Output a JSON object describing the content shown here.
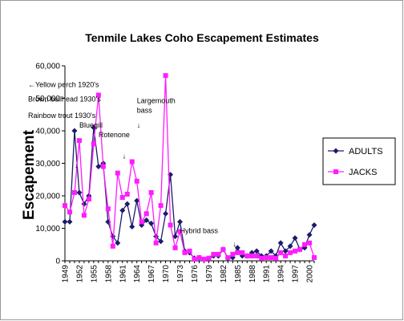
{
  "chart_data": {
    "type": "line",
    "title": "Tenmile Lakes Coho Escapement Estimates",
    "ylabel": "Escapement",
    "xlabel": "",
    "ylim": [
      0,
      60000
    ],
    "yticks": [
      "0",
      "10,000",
      "20,000",
      "30,000",
      "40,000",
      "50,000",
      "60,000"
    ],
    "xlim": [
      1949,
      2001
    ],
    "xticks": [
      "1949",
      "1952",
      "1955",
      "1958",
      "1961",
      "1964",
      "1967",
      "1970",
      "1973",
      "1976",
      "1979",
      "1982",
      "1985",
      "1988",
      "1991",
      "1994",
      "1997",
      "2000"
    ],
    "grid": false,
    "legend": "right",
    "series": [
      {
        "name": "ADULTS",
        "color": "#1c1c6b",
        "marker": "diamond",
        "x": [
          1949,
          1950,
          1951,
          1952,
          1953,
          1954,
          1955,
          1956,
          1957,
          1958,
          1959,
          1960,
          1961,
          1962,
          1963,
          1964,
          1965,
          1966,
          1967,
          1968,
          1969,
          1970,
          1971,
          1972,
          1973,
          1974,
          1975,
          1976,
          1977,
          1978,
          1979,
          1980,
          1981,
          1982,
          1983,
          1984,
          1985,
          1986,
          1987,
          1988,
          1989,
          1990,
          1991,
          1992,
          1993,
          1994,
          1995,
          1996,
          1997,
          1998,
          1999,
          2000,
          2001
        ],
        "values": [
          12000,
          12000,
          40000,
          21000,
          17500,
          20000,
          41000,
          29000,
          30000,
          12000,
          7500,
          5500,
          15500,
          17500,
          10500,
          18500,
          11000,
          12500,
          11500,
          7500,
          6000,
          14500,
          26500,
          7500,
          12000,
          3000,
          2500,
          800,
          1000,
          500,
          700,
          1500,
          1500,
          3500,
          800,
          1000,
          4000,
          1500,
          1500,
          2500,
          3000,
          1500,
          1500,
          3000,
          1500,
          5500,
          3000,
          4500,
          7000,
          3500,
          4000,
          8000,
          11000
        ]
      },
      {
        "name": "JACKS",
        "color": "#ff1cff",
        "marker": "square",
        "x": [
          1949,
          1950,
          1951,
          1952,
          1953,
          1954,
          1955,
          1956,
          1957,
          1958,
          1959,
          1960,
          1961,
          1962,
          1963,
          1964,
          1965,
          1966,
          1967,
          1968,
          1969,
          1970,
          1971,
          1972,
          1973,
          1974,
          1975,
          1976,
          1977,
          1978,
          1979,
          1980,
          1981,
          1982,
          1983,
          1984,
          1985,
          1986,
          1987,
          1988,
          1989,
          1990,
          1991,
          1992,
          1993,
          1994,
          1995,
          1996,
          1997,
          1998,
          1999,
          2000,
          2001
        ],
        "values": [
          17000,
          15000,
          21000,
          37000,
          14000,
          19000,
          36000,
          51000,
          29000,
          16000,
          4500,
          27000,
          19500,
          20500,
          30500,
          24500,
          12000,
          14500,
          21000,
          5500,
          17000,
          57000,
          11000,
          4000,
          9000,
          2500,
          3000,
          500,
          1000,
          500,
          800,
          2000,
          2000,
          3500,
          1000,
          2000,
          2500,
          2500,
          1500,
          1500,
          1500,
          800,
          1000,
          1000,
          800,
          2500,
          1500,
          2500,
          3000,
          3500,
          5000,
          5500,
          1000
        ]
      }
    ],
    "annotations": [
      {
        "text": "←Yellow perch 1920's",
        "x": 1949,
        "y": 53500
      },
      {
        "text": "Brown bullhead 1930's",
        "x": 1949,
        "y": 49000
      },
      {
        "text": "Rainbow  trout 1930's",
        "x": 1949,
        "y": 44000
      },
      {
        "text": "Bluegill",
        "x": 1952,
        "y": 41000
      },
      {
        "text": "↓",
        "x": 1951,
        "y": 28500
      },
      {
        "text": "Rotenone",
        "x": 1956,
        "y": 38000
      },
      {
        "text": "↓",
        "x": 1961,
        "y": 31500
      },
      {
        "text": "Largemouth",
        "x": 1964,
        "y": 48500
      },
      {
        "text": "bass",
        "x": 1964,
        "y": 45500
      },
      {
        "text": "↓",
        "x": 1964,
        "y": 41000
      },
      {
        "text": "Hybrid bass",
        "x": 1973,
        "y": 8500
      },
      {
        "text": "↓",
        "x": 1984,
        "y": 4500
      }
    ]
  }
}
